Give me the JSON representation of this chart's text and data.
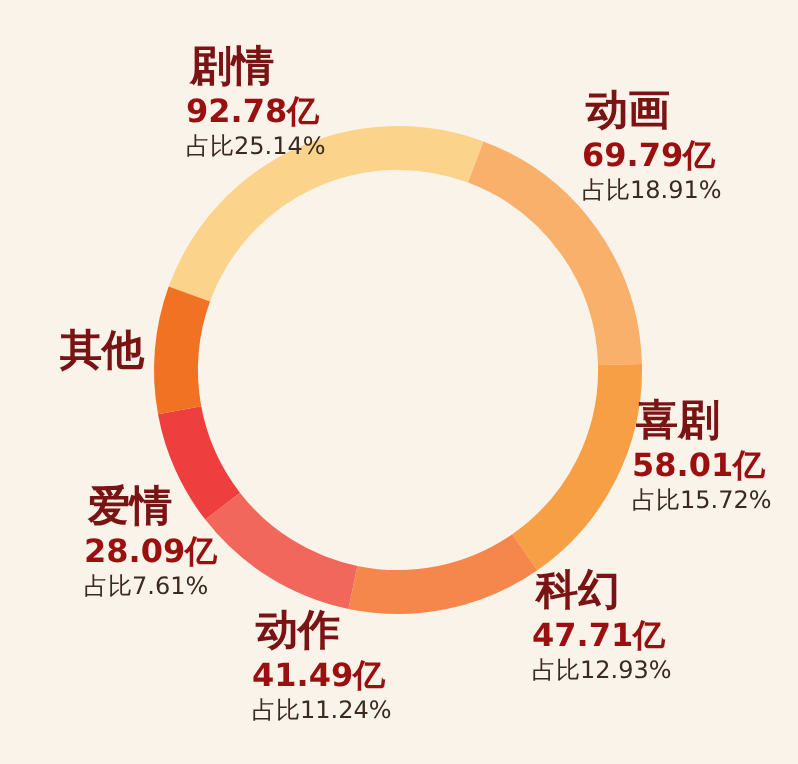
{
  "chart_data": {
    "type": "donut",
    "categories": [
      "剧情",
      "动画",
      "喜剧",
      "科幻",
      "动作",
      "爱情",
      "其他"
    ],
    "values": [
      25.14,
      18.91,
      15.72,
      12.93,
      11.24,
      7.61,
      8.45
    ],
    "colors": [
      "#fbd38a",
      "#f8b06a",
      "#f79f45",
      "#f5874c",
      "#f2675c",
      "#ee3e3e",
      "#f07222"
    ],
    "value_labels": [
      "占比25.14%",
      "占比18.91%",
      "占比15.72%",
      "占比12.93%",
      "占比11.24%",
      "占比7.61%",
      null
    ],
    "annotations": [
      "92.78亿",
      "69.79亿",
      "58.01亿",
      "47.71亿",
      "41.49亿",
      "28.09亿"
    ],
    "legend": false
  }
}
